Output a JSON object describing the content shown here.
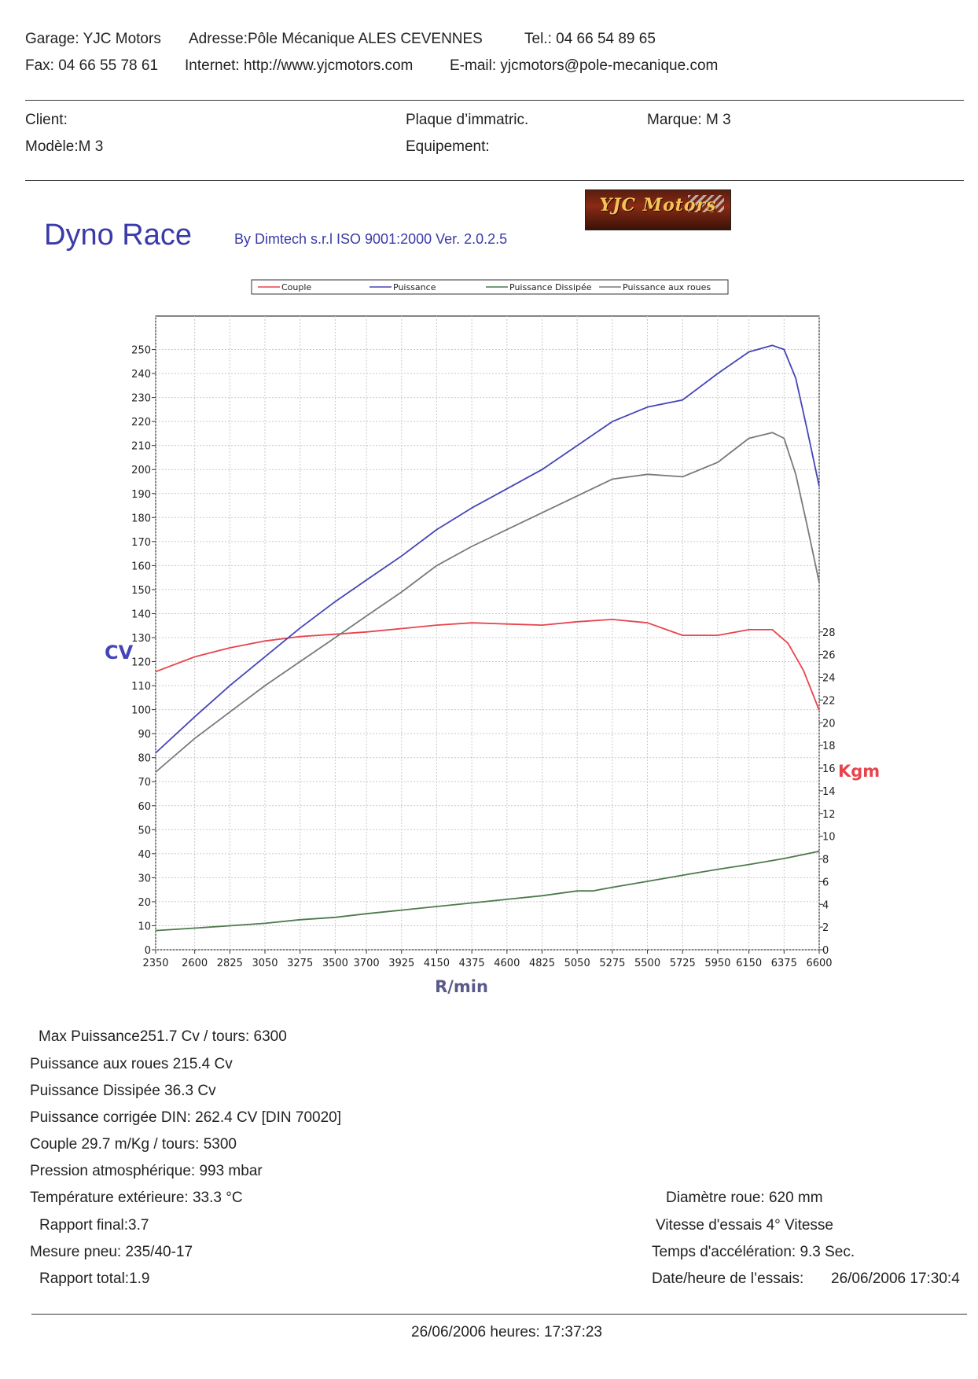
{
  "header": {
    "line1": {
      "garage": "Garage: YJC Motors",
      "adresse": "Adresse:Pôle Mécanique ALES CEVENNES",
      "tel": "Tel.: 04 66 54 89 65"
    },
    "line2": {
      "fax": "Fax: 04 66 55 78 61",
      "internet": "Internet: http://www.yjcmotors.com",
      "email": "E-mail: yjcmotors@pole-mecanique.com"
    }
  },
  "vehicle": {
    "client": "Client:",
    "plaque": "Plaque d’immatric.",
    "marque": "Marque: M 3",
    "modele": "Modèle:M 3",
    "equipement": "Equipement:"
  },
  "brand": {
    "title": "Dyno Race",
    "subtitle": "By Dimtech s.r.l  ISO 9001:2000  Ver. 2.0.2.5",
    "logo_text": "YJC Motors"
  },
  "chart_data": {
    "type": "line",
    "xlabel": "R/min",
    "ylabel_left": "CV",
    "ylabel_right": "Kgm",
    "x_ticks": [
      2350,
      2600,
      2825,
      3050,
      3275,
      3500,
      3700,
      3925,
      4150,
      4375,
      4600,
      4825,
      5050,
      5275,
      5500,
      5725,
      5950,
      6150,
      6375,
      6600
    ],
    "y_left_ticks": [
      0,
      10,
      20,
      30,
      40,
      50,
      60,
      70,
      80,
      90,
      100,
      110,
      120,
      130,
      140,
      150,
      160,
      170,
      180,
      190,
      200,
      210,
      220,
      230,
      240,
      250
    ],
    "y_right_ticks": [
      0,
      2,
      4,
      6,
      8,
      10,
      12,
      14,
      16,
      18,
      20,
      22,
      24,
      26,
      28
    ],
    "xlim": [
      2350,
      6600
    ],
    "ylim_left": [
      0,
      260
    ],
    "ylim_right": [
      0,
      55
    ],
    "grid": true,
    "legend_position": "top",
    "series": [
      {
        "name": "Couple",
        "axis": "right",
        "color": "#e8444c",
        "x": [
          2350,
          2600,
          2825,
          3050,
          3275,
          3500,
          3700,
          3925,
          4150,
          4375,
          4600,
          4825,
          5050,
          5275,
          5500,
          5725,
          5950,
          6150,
          6300,
          6400,
          6500,
          6600
        ],
        "y": [
          24.5,
          25.8,
          26.6,
          27.2,
          27.6,
          27.8,
          28.0,
          28.3,
          28.6,
          28.8,
          28.7,
          28.6,
          28.9,
          29.1,
          28.8,
          27.7,
          27.7,
          28.2,
          28.2,
          27.0,
          24.6,
          21.1
        ]
      },
      {
        "name": "Puissance",
        "axis": "left",
        "color": "#4545b8",
        "x": [
          2350,
          2600,
          2825,
          3050,
          3275,
          3500,
          3700,
          3925,
          4150,
          4375,
          4600,
          4825,
          5050,
          5275,
          5500,
          5725,
          5950,
          6150,
          6300,
          6375,
          6450,
          6525,
          6600
        ],
        "y": [
          82,
          97,
          110,
          122,
          134,
          145,
          154,
          164,
          175,
          184,
          192,
          200,
          210,
          220,
          226,
          229,
          240,
          249,
          251.7,
          250,
          238,
          216,
          193
        ]
      },
      {
        "name": "Puissance Dissipée",
        "axis": "left",
        "color": "#4d7a4d",
        "x": [
          2350,
          2600,
          2825,
          3050,
          3275,
          3500,
          3700,
          3925,
          4150,
          4375,
          4600,
          4825,
          5050,
          5150,
          5275,
          5500,
          5725,
          5950,
          6150,
          6375,
          6600
        ],
        "y": [
          8,
          9,
          10,
          11,
          12.5,
          13.5,
          15,
          16.5,
          18,
          19.5,
          21,
          22.5,
          24.5,
          24.5,
          26,
          28.5,
          31,
          33.5,
          35.5,
          38,
          41
        ]
      },
      {
        "name": "Puissance aux roues",
        "axis": "left",
        "color": "#7a7a7a",
        "x": [
          2350,
          2600,
          2825,
          3050,
          3275,
          3500,
          3700,
          3925,
          4150,
          4375,
          4600,
          4825,
          5050,
          5275,
          5500,
          5725,
          5950,
          6150,
          6300,
          6375,
          6450,
          6525,
          6600
        ],
        "y": [
          74,
          88,
          99,
          110,
          120,
          130,
          139,
          149,
          160,
          168,
          175,
          182,
          189,
          196,
          198,
          197,
          203,
          213,
          215.4,
          213,
          198,
          176,
          153
        ]
      }
    ]
  },
  "stats_left": [
    "Max    Puissance251.7 Cv / tours: 6300",
    "Puissance aux roues      215.4 Cv",
    "Puissance Dissipée   36.3 Cv",
    "Puissance corrigée DIN:  262.4 CV  [DIN 70020]",
    "Couple 29.7  m/Kg / tours: 5300",
    "Pression atmosphérique:  993 mbar",
    "Température extérieure:  33.3 °C",
    "Rapport final:3.7",
    "Mesure pneu: 235/40-17",
    "Rapport total:1.9"
  ],
  "stats_right": {
    "diametre": "Diamètre roue: 620 mm",
    "vitesse": "Vitesse d'essais  4° Vitesse",
    "temps": "Temps d'accélération: 9.3 Sec.",
    "date_label": "Date/heure de l’essais:",
    "date_value": "26/06/2006 17:30:4"
  },
  "footer": {
    "timestamp": "26/06/2006  heures:  17:37:23"
  }
}
